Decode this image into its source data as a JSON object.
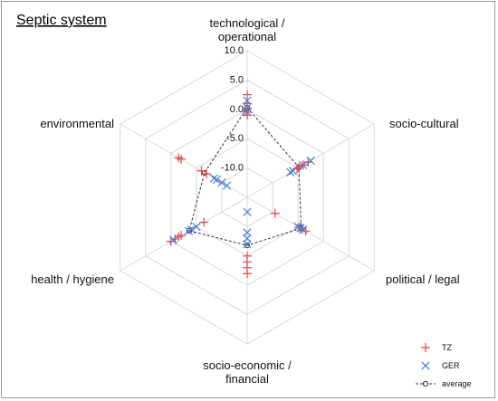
{
  "chart_data": {
    "type": "radar",
    "title": "Septic system",
    "axes": [
      {
        "lines": [
          "technological /",
          "operational"
        ]
      },
      {
        "lines": [
          "socio-cultural"
        ]
      },
      {
        "lines": [
          "political / legal"
        ]
      },
      {
        "lines": [
          "socio-economic /",
          "financial"
        ]
      },
      {
        "lines": [
          "health / hygiene"
        ]
      },
      {
        "lines": [
          "environmental"
        ]
      }
    ],
    "rlim": [
      -15,
      10
    ],
    "ticks": [
      10.0,
      5.0,
      0.0,
      -5.0,
      -10.0
    ],
    "tick_labels": [
      "10.0",
      "5.0",
      "0.0",
      "-5.0",
      "-10.0"
    ],
    "grid": true,
    "legend_position": "bottom-right",
    "series": [
      {
        "name": "TZ",
        "marker": "plus",
        "color": "#e0474c",
        "points": [
          [
            0,
            2.5
          ],
          [
            0,
            1.0
          ],
          [
            0,
            0.2
          ],
          [
            0,
            -0.5
          ],
          [
            0,
            -1.0
          ],
          [
            1,
            -3.0
          ],
          [
            1,
            -4.0
          ],
          [
            1,
            -4.8
          ],
          [
            1,
            -5.2
          ],
          [
            2,
            -3.5
          ],
          [
            2,
            -4.2
          ],
          [
            2,
            -4.8
          ],
          [
            2,
            -9.5
          ],
          [
            3,
            -2.0
          ],
          [
            3,
            -3.0
          ],
          [
            3,
            -4.0
          ],
          [
            3,
            -5.0
          ],
          [
            4,
            0.0
          ],
          [
            4,
            -0.8
          ],
          [
            4,
            -1.5
          ],
          [
            4,
            -2.0
          ],
          [
            4,
            -6.5
          ],
          [
            5,
            -1.5
          ],
          [
            5,
            -2.0
          ],
          [
            5,
            -6.0
          ],
          [
            5,
            -7.0
          ]
        ]
      },
      {
        "name": "GER",
        "marker": "cross",
        "color": "#4a7fd4",
        "points": [
          [
            0,
            1.5
          ],
          [
            0,
            0.3
          ],
          [
            0,
            -0.5
          ],
          [
            1,
            -2.5
          ],
          [
            1,
            -4.0
          ],
          [
            1,
            -6.0
          ],
          [
            1,
            -6.5
          ],
          [
            2,
            -4.0
          ],
          [
            2,
            -4.5
          ],
          [
            2,
            -5.0
          ],
          [
            3,
            -7.0
          ],
          [
            3,
            -8.0
          ],
          [
            3,
            -9.0
          ],
          [
            3,
            -12.5
          ],
          [
            4,
            -0.5
          ],
          [
            4,
            -3.5
          ],
          [
            4,
            -4.0
          ],
          [
            4,
            -5.0
          ],
          [
            5,
            -8.5
          ],
          [
            5,
            -9.0
          ],
          [
            5,
            -10.0
          ],
          [
            5,
            -11.0
          ]
        ]
      },
      {
        "name": "average",
        "marker": "circle-dashed",
        "color": "#333333",
        "values": [
          0.3,
          -4.8,
          -4.4,
          -6.8,
          -3.6,
          -6.6
        ]
      }
    ]
  }
}
